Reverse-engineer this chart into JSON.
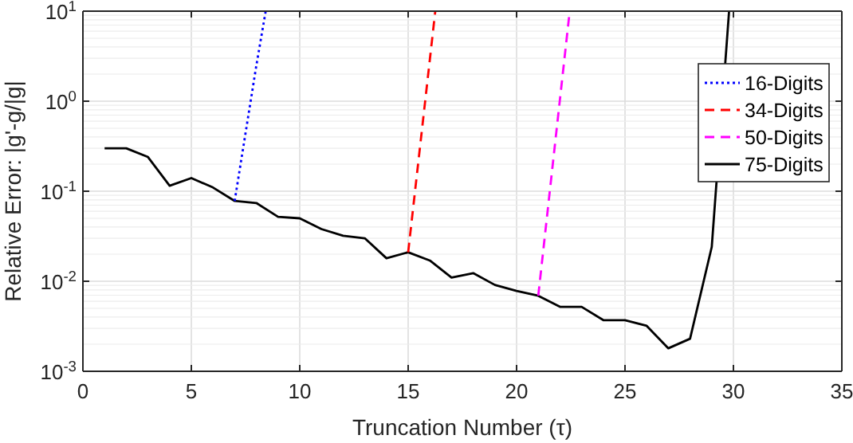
{
  "chart_data": {
    "type": "line",
    "xlabel": "Truncation Number (τ)",
    "ylabel": "Relative Error: |g'-g/|g|",
    "log": "y",
    "grid": true,
    "legend": "top right",
    "xlim": [
      0,
      35
    ],
    "xticks": [
      0,
      5,
      10,
      15,
      20,
      25,
      30,
      35
    ],
    "ylim": [
      0.001,
      10
    ],
    "yticks": [
      {
        "value": 0.001,
        "label": "10$^{-3}$"
      },
      {
        "value": 0.01,
        "label": "10$^{-2}$"
      },
      {
        "value": 0.1,
        "label": "10$^{-1}$"
      },
      {
        "value": 1,
        "label": "10$^{0}$"
      },
      {
        "value": 10,
        "label": "10$^{1}$"
      }
    ],
    "series": [
      {
        "name": "16-Digits",
        "color": "#0000ff",
        "line_style": "dotted",
        "x": [
          7,
          8,
          8.43
        ],
        "values": [
          0.078,
          2.5,
          10
        ]
      },
      {
        "name": "34-Digits",
        "color": "#ff0000",
        "line_style": "dashed",
        "x": [
          15,
          16,
          16.25
        ],
        "values": [
          0.021,
          2.9,
          10
        ]
      },
      {
        "name": "50-Digits",
        "color": "#ff00ff",
        "line_style": "dashed",
        "x": [
          21,
          22,
          22.45
        ],
        "values": [
          0.0069,
          1.05,
          10
        ]
      },
      {
        "name": "75-Digits",
        "color": "#000000",
        "line_style": "solid",
        "x": [
          1,
          2,
          3,
          4,
          5,
          6,
          7,
          8,
          9,
          10,
          11,
          12,
          13,
          14,
          15,
          16,
          17,
          18,
          19,
          20,
          21,
          22,
          23,
          24,
          25,
          26,
          27,
          28,
          29,
          29.8
        ],
        "values": [
          0.3,
          0.3,
          0.24,
          0.115,
          0.14,
          0.11,
          0.078,
          0.074,
          0.052,
          0.05,
          0.038,
          0.032,
          0.03,
          0.018,
          0.021,
          0.017,
          0.011,
          0.0123,
          0.0091,
          0.0078,
          0.0069,
          0.0052,
          0.0052,
          0.0037,
          0.0037,
          0.0032,
          0.0018,
          0.0023,
          0.024,
          10
        ]
      }
    ]
  }
}
